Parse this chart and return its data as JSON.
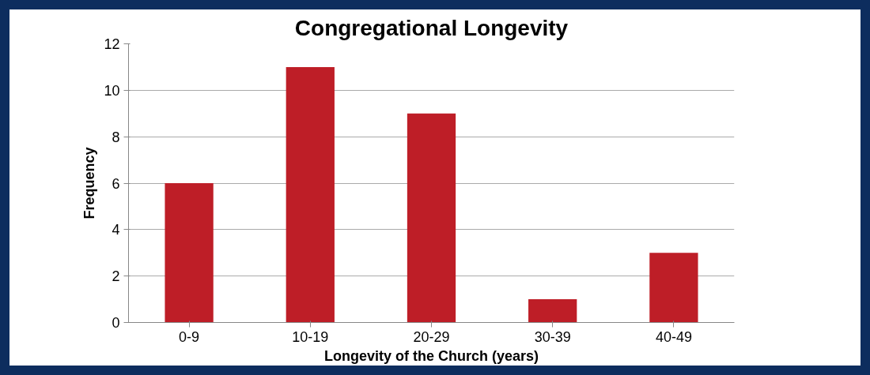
{
  "chart_data": {
    "type": "bar",
    "title": "Congregational Longevity",
    "xlabel": "Longevity of the Church (years)",
    "ylabel": "Frequency",
    "categories": [
      "0-9",
      "10-19",
      "20-29",
      "30-39",
      "40-49"
    ],
    "values": [
      6,
      11,
      9,
      1,
      3
    ],
    "color": "#be1e27",
    "ylim": [
      0,
      12
    ],
    "yticks": [
      0,
      2,
      4,
      6,
      8,
      10,
      12
    ],
    "grid": "y"
  }
}
